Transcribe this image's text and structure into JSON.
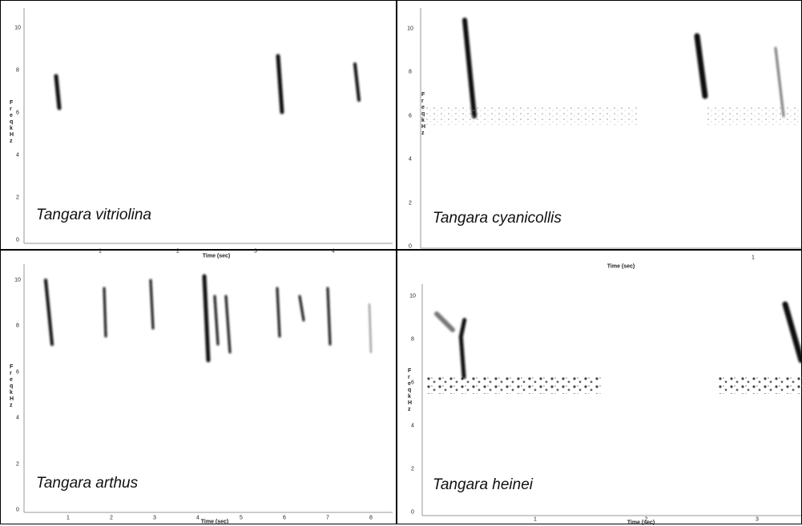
{
  "panels": [
    {
      "label": "Tangara vitriolina",
      "yticks": [
        0,
        2,
        4,
        6,
        8,
        10
      ],
      "xticks": [
        1,
        2,
        3,
        4
      ],
      "xlabel": "Time (sec)",
      "ylabel": "Freq kHz"
    },
    {
      "label": "Tangara cyanicollis",
      "yticks": [
        0,
        2,
        4,
        6,
        8,
        10
      ],
      "xticks": [
        1
      ],
      "xlabel": "Time (sec)",
      "ylabel": "Freq kHz"
    },
    {
      "label": "Tangara arthus",
      "yticks": [
        0,
        2,
        4,
        6,
        8,
        10
      ],
      "xticks": [
        1,
        2,
        3,
        4,
        5,
        6,
        7,
        8
      ],
      "xlabel": "Time (sec)",
      "ylabel": "Freq kHz"
    },
    {
      "label": "Tangara heinei",
      "yticks": [
        0,
        2,
        4,
        6,
        8,
        10
      ],
      "xticks": [
        1,
        2,
        3
      ],
      "xlabel": "Time (sec)",
      "ylabel": "Freq kHz"
    }
  ]
}
